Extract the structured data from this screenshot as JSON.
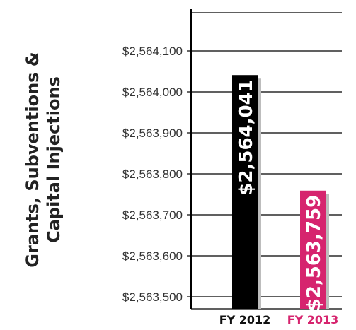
{
  "chart_data": {
    "type": "bar",
    "ylabel_lines": [
      "Grants, Subventions &",
      "Capital Injections"
    ],
    "categories": [
      "FY 2012",
      "FY 2013"
    ],
    "values": [
      2564041,
      2563759
    ],
    "value_labels": [
      "$2,564,041",
      "$2,563,759"
    ],
    "colors": [
      "#000000",
      "#d6246e"
    ],
    "category_label_colors": [
      "#111111",
      "#d6246e"
    ],
    "ylim": [
      2563500,
      2564100
    ],
    "yticks": [
      2563500,
      2563600,
      2563700,
      2563800,
      2563900,
      2564000,
      2564100
    ],
    "ytick_labels": [
      "$2,563,500",
      "$2,563,600",
      "$2,563,700",
      "$2,563,800",
      "$2,563,900",
      "$2,564,000",
      "$2,564,100"
    ],
    "grid": true,
    "legend": false
  }
}
